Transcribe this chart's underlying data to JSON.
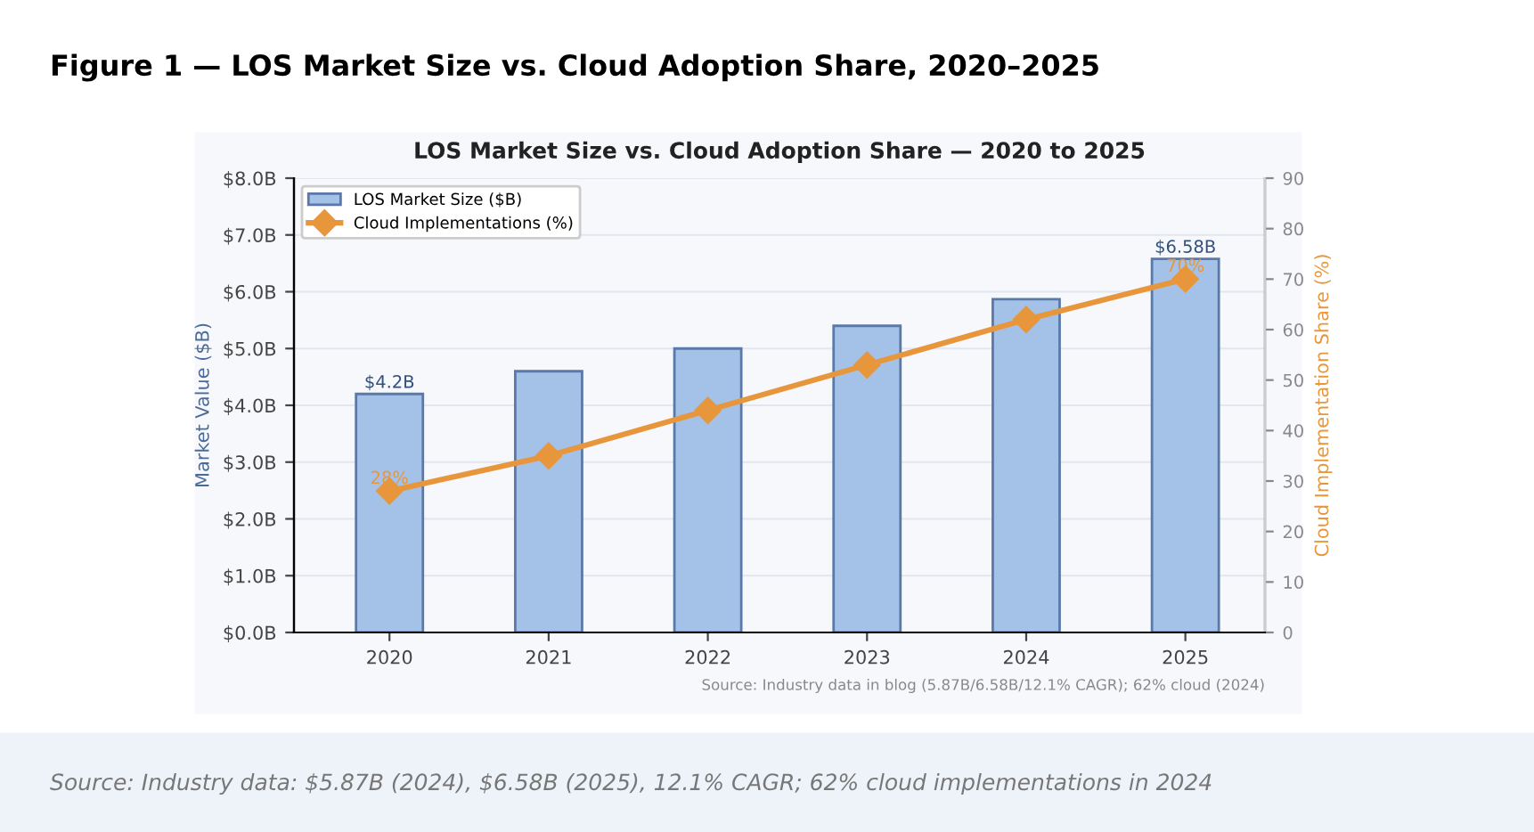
{
  "chart_data": {
    "type": "bar",
    "title": "Figure 1 — LOS Market Size vs. Cloud Adoption Share, 2020–2025",
    "subtitle": "LOS Market Size vs. Cloud Adoption Share — 2020 to 2025",
    "ylabel": "Market Value ($B)",
    "y2label": "Cloud Implementation Share (%)",
    "categories": [
      "2020",
      "2021",
      "2022",
      "2023",
      "2024",
      "2025"
    ],
    "series": [
      {
        "name": "LOS Market Size ($B)",
        "color": "#a4c2e8",
        "values": [
          4.2,
          4.6,
          5.0,
          5.4,
          5.87,
          6.58
        ],
        "value_labels": [
          "$4.2B",
          null,
          null,
          null,
          null,
          "$6.58B"
        ]
      },
      {
        "name": "Cloud Implementations (%)",
        "type": "line",
        "axis": "y2",
        "color": "#e8963c",
        "values": [
          28,
          35,
          44,
          53,
          62,
          70
        ],
        "value_labels": [
          "28%",
          null,
          null,
          null,
          null,
          "70%"
        ]
      }
    ],
    "ylim": [
      0,
      8
    ],
    "yticks": [
      {
        "value": 0,
        "label": "$0.0B"
      },
      {
        "value": 1,
        "label": "$1.0B"
      },
      {
        "value": 2,
        "label": "$2.0B"
      },
      {
        "value": 3,
        "label": "$3.0B"
      },
      {
        "value": 4,
        "label": "$4.0B"
      },
      {
        "value": 5,
        "label": "$5.0B"
      },
      {
        "value": 6,
        "label": "$6.0B"
      },
      {
        "value": 7,
        "label": "$7.0B"
      },
      {
        "value": 8,
        "label": "$8.0B"
      }
    ],
    "y2lim": [
      0,
      90
    ],
    "y2ticks": [
      0,
      10,
      20,
      30,
      40,
      50,
      60,
      70,
      80,
      90
    ],
    "grid": "y",
    "legend": "top left",
    "marker": "diamond",
    "line_style": "solid",
    "annotations": [
      "Source: Industry data in blog (5.87B/6.58B/12.1% CAGR); 62% cloud (2024)",
      "Source: Industry data: $5.87B (2024), $6.58B (2025), 12.1% CAGR; 62% cloud implementations in 2024"
    ]
  }
}
